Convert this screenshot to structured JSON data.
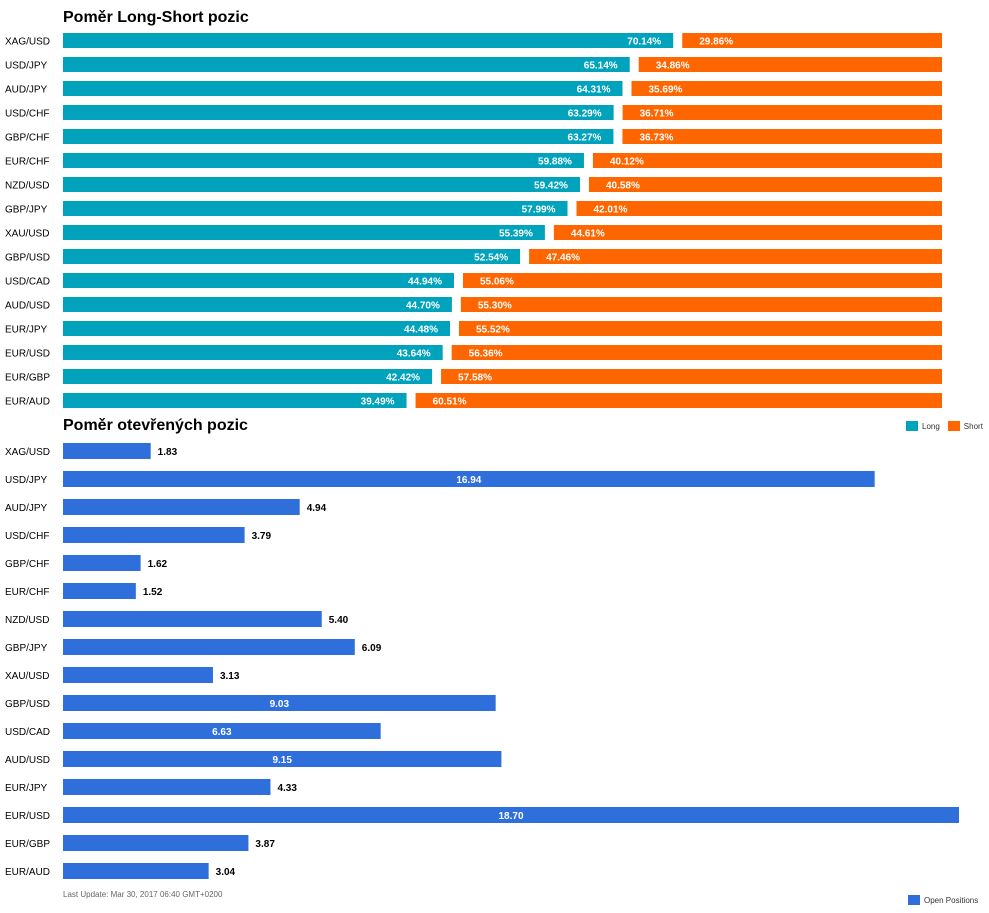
{
  "chart_data": [
    {
      "type": "bar",
      "orientation": "horizontal",
      "stacked": true,
      "title": "Poměr Long-Short pozic",
      "categories": [
        "XAG/USD",
        "USD/JPY",
        "AUD/JPY",
        "USD/CHF",
        "GBP/CHF",
        "EUR/CHF",
        "NZD/USD",
        "GBP/JPY",
        "XAU/USD",
        "GBP/USD",
        "USD/CAD",
        "AUD/USD",
        "EUR/JPY",
        "EUR/USD",
        "EUR/GBP",
        "EUR/AUD"
      ],
      "series": [
        {
          "name": "Long",
          "color": "#00a3bb",
          "values": [
            70.14,
            65.14,
            64.31,
            63.29,
            63.27,
            59.88,
            59.42,
            57.99,
            55.39,
            52.54,
            44.94,
            44.7,
            44.48,
            43.64,
            42.42,
            39.49
          ],
          "labels": [
            "70.14%",
            "65.14%",
            "64.31%",
            "63.29%",
            "63.27%",
            "59.88%",
            "59.42%",
            "57.99%",
            "55.39%",
            "52.54%",
            "44.94%",
            "44.70%",
            "44.48%",
            "43.64%",
            "42.42%",
            "39.49%"
          ]
        },
        {
          "name": "Short",
          "color": "#ff6600",
          "values": [
            29.86,
            34.86,
            35.69,
            36.71,
            36.73,
            40.12,
            40.58,
            42.01,
            44.61,
            47.46,
            55.06,
            55.3,
            55.52,
            56.36,
            57.58,
            60.51
          ],
          "labels": [
            "29.86%",
            "34.86%",
            "35.69%",
            "36.71%",
            "36.73%",
            "40.12%",
            "40.58%",
            "42.01%",
            "44.61%",
            "47.46%",
            "55.06%",
            "55.30%",
            "55.52%",
            "56.36%",
            "57.58%",
            "60.51%"
          ]
        }
      ],
      "xlim": [
        0,
        100
      ],
      "grid": false,
      "legend": "bottom-right"
    },
    {
      "type": "bar",
      "orientation": "horizontal",
      "title": "Poměr otevřených pozic",
      "categories": [
        "XAG/USD",
        "USD/JPY",
        "AUD/JPY",
        "USD/CHF",
        "GBP/CHF",
        "EUR/CHF",
        "NZD/USD",
        "GBP/JPY",
        "XAU/USD",
        "GBP/USD",
        "USD/CAD",
        "AUD/USD",
        "EUR/JPY",
        "EUR/USD",
        "EUR/GBP",
        "EUR/AUD"
      ],
      "series": [
        {
          "name": "Open Positions",
          "color": "#2f6fdb",
          "values": [
            1.83,
            16.94,
            4.94,
            3.79,
            1.62,
            1.52,
            5.4,
            6.09,
            3.13,
            9.03,
            6.63,
            9.15,
            4.33,
            18.7,
            3.87,
            3.04
          ],
          "labels": [
            "1.83",
            "16.94",
            "4.94",
            "3.79",
            "1.62",
            "1.52",
            "5.40",
            "6.09",
            "3.13",
            "9.03",
            "6.63",
            "9.15",
            "4.33",
            "18.70",
            "3.87",
            "3.04"
          ]
        }
      ],
      "xlim": [
        0,
        18.7
      ],
      "grid": false,
      "legend": "bottom-right"
    }
  ],
  "legend_long": "Long",
  "legend_short": "Short",
  "legend_open": "Open Positions",
  "last_update": "Last Update: Mar 30, 2017 06:40 GMT+0200"
}
